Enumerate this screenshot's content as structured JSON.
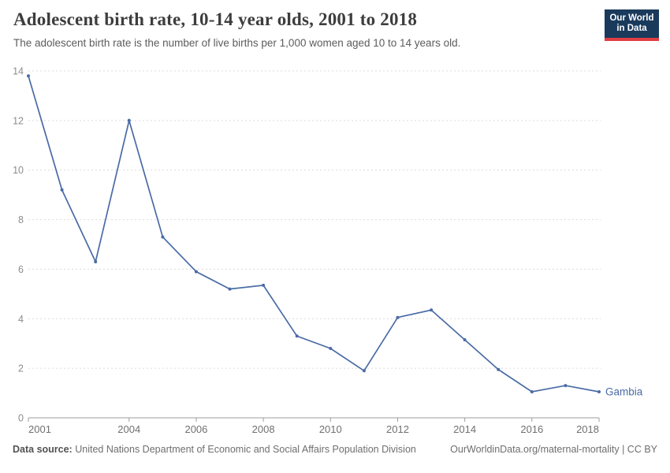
{
  "header": {
    "title": "Adolescent birth rate, 10-14 year olds, 2001 to 2018",
    "subtitle": "The adolescent birth rate is the number of live births per 1,000 women aged 10 to 14 years old.",
    "logo": {
      "line1": "Our World",
      "line2": "in Data",
      "bg_color": "#1a3a5c",
      "accent_color": "#e13d43"
    }
  },
  "chart_data": {
    "type": "line",
    "title": "Adolescent birth rate, 10-14 year olds, 2001 to 2018",
    "xlabel": "",
    "ylabel": "",
    "xlim": [
      2001,
      2018
    ],
    "ylim": [
      0,
      14
    ],
    "grid": "horizontal-dashed",
    "legend": "end-of-line-label",
    "x": [
      2001,
      2002,
      2003,
      2004,
      2005,
      2006,
      2007,
      2008,
      2009,
      2010,
      2011,
      2012,
      2013,
      2014,
      2015,
      2016,
      2017,
      2018
    ],
    "series": [
      {
        "name": "Gambia",
        "color": "#4a6ba5",
        "values": [
          13.8,
          9.2,
          6.3,
          12.0,
          7.3,
          5.9,
          5.2,
          5.35,
          3.3,
          2.8,
          1.9,
          4.05,
          4.35,
          3.15,
          1.95,
          1.05,
          1.3,
          1.05
        ]
      }
    ],
    "x_ticks": [
      2001,
      2004,
      2006,
      2008,
      2010,
      2012,
      2014,
      2016,
      2018
    ],
    "y_ticks": [
      0,
      2,
      4,
      6,
      8,
      10,
      12,
      14
    ]
  },
  "footer": {
    "data_source_label": "Data source:",
    "data_source": "United Nations Department of Economic and Social Affairs Population Division",
    "attribution": "OurWorldinData.org/maternal-mortality | CC BY"
  }
}
